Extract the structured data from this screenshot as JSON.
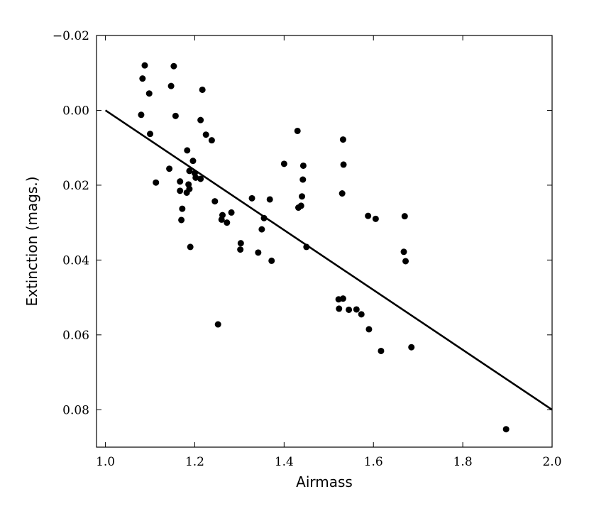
{
  "chart_data": {
    "type": "scatter",
    "title": "",
    "xlabel": "Airmass",
    "ylabel": "Extinction (mags.)",
    "xlim": [
      0.98,
      2.0
    ],
    "ylim": [
      -0.02,
      0.09
    ],
    "y_inverted": true,
    "grid": false,
    "x_ticks": [
      1.0,
      1.2,
      1.4,
      1.6,
      1.8,
      2.0
    ],
    "x_tick_labels": [
      "1.0",
      "1.2",
      "1.4",
      "1.6",
      "1.8",
      "2.0"
    ],
    "y_ticks": [
      -0.02,
      0.0,
      0.02,
      0.04,
      0.06,
      0.08
    ],
    "y_tick_labels": [
      "−0.02",
      "0.00",
      "0.02",
      "0.04",
      "0.06",
      "0.08"
    ],
    "points": [
      {
        "x": 1.083,
        "y": -0.0085
      },
      {
        "x": 1.088,
        "y": -0.012
      },
      {
        "x": 1.08,
        "y": 0.0012
      },
      {
        "x": 1.098,
        "y": -0.0045
      },
      {
        "x": 1.1,
        "y": 0.0063
      },
      {
        "x": 1.113,
        "y": 0.0193
      },
      {
        "x": 1.147,
        "y": -0.0065
      },
      {
        "x": 1.153,
        "y": -0.0118
      },
      {
        "x": 1.157,
        "y": 0.0015
      },
      {
        "x": 1.143,
        "y": 0.0156
      },
      {
        "x": 1.217,
        "y": -0.0055
      },
      {
        "x": 1.213,
        "y": 0.0026
      },
      {
        "x": 1.225,
        "y": 0.0065
      },
      {
        "x": 1.238,
        "y": 0.008
      },
      {
        "x": 1.183,
        "y": 0.0107
      },
      {
        "x": 1.196,
        "y": 0.0135
      },
      {
        "x": 1.188,
        "y": 0.0162
      },
      {
        "x": 1.2,
        "y": 0.0168
      },
      {
        "x": 1.202,
        "y": 0.018
      },
      {
        "x": 1.213,
        "y": 0.0183
      },
      {
        "x": 1.167,
        "y": 0.019
      },
      {
        "x": 1.186,
        "y": 0.0198
      },
      {
        "x": 1.188,
        "y": 0.021
      },
      {
        "x": 1.167,
        "y": 0.0215
      },
      {
        "x": 1.182,
        "y": 0.022
      },
      {
        "x": 1.172,
        "y": 0.0263
      },
      {
        "x": 1.17,
        "y": 0.0293
      },
      {
        "x": 1.19,
        "y": 0.0365
      },
      {
        "x": 1.245,
        "y": 0.0243
      },
      {
        "x": 1.262,
        "y": 0.028
      },
      {
        "x": 1.26,
        "y": 0.0292
      },
      {
        "x": 1.272,
        "y": 0.03
      },
      {
        "x": 1.282,
        "y": 0.0273
      },
      {
        "x": 1.303,
        "y": 0.0355
      },
      {
        "x": 1.302,
        "y": 0.0372
      },
      {
        "x": 1.252,
        "y": 0.0572
      },
      {
        "x": 1.328,
        "y": 0.0235
      },
      {
        "x": 1.355,
        "y": 0.0288
      },
      {
        "x": 1.35,
        "y": 0.0318
      },
      {
        "x": 1.342,
        "y": 0.038
      },
      {
        "x": 1.372,
        "y": 0.0402
      },
      {
        "x": 1.368,
        "y": 0.0238
      },
      {
        "x": 1.4,
        "y": 0.0143
      },
      {
        "x": 1.43,
        "y": 0.0055
      },
      {
        "x": 1.443,
        "y": 0.0148
      },
      {
        "x": 1.442,
        "y": 0.0185
      },
      {
        "x": 1.44,
        "y": 0.023
      },
      {
        "x": 1.438,
        "y": 0.0255
      },
      {
        "x": 1.432,
        "y": 0.026
      },
      {
        "x": 1.45,
        "y": 0.0365
      },
      {
        "x": 1.532,
        "y": 0.0078
      },
      {
        "x": 1.533,
        "y": 0.0145
      },
      {
        "x": 1.53,
        "y": 0.0222
      },
      {
        "x": 1.522,
        "y": 0.0505
      },
      {
        "x": 1.532,
        "y": 0.0503
      },
      {
        "x": 1.523,
        "y": 0.053
      },
      {
        "x": 1.545,
        "y": 0.0533
      },
      {
        "x": 1.562,
        "y": 0.0532
      },
      {
        "x": 1.573,
        "y": 0.0545
      },
      {
        "x": 1.59,
        "y": 0.0585
      },
      {
        "x": 1.617,
        "y": 0.0643
      },
      {
        "x": 1.588,
        "y": 0.0282
      },
      {
        "x": 1.605,
        "y": 0.029
      },
      {
        "x": 1.67,
        "y": 0.0283
      },
      {
        "x": 1.668,
        "y": 0.0378
      },
      {
        "x": 1.672,
        "y": 0.0403
      },
      {
        "x": 1.685,
        "y": 0.0633
      },
      {
        "x": 1.897,
        "y": 0.0852
      }
    ],
    "fit_line": {
      "x": [
        1.0,
        2.0
      ],
      "y": [
        0.0,
        0.08
      ]
    }
  }
}
